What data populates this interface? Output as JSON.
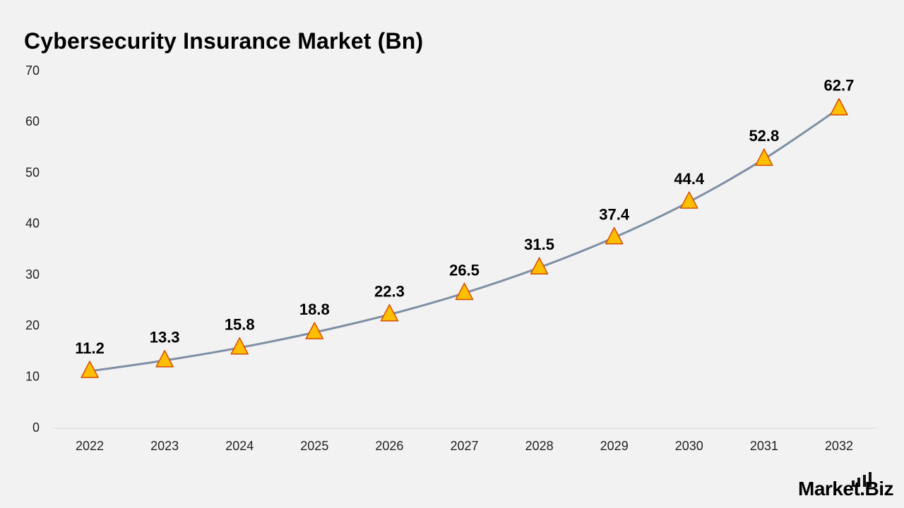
{
  "chart_data": {
    "type": "line",
    "title": "Cybersecurity Insurance Market (Bn)",
    "xlabel": "",
    "ylabel": "",
    "categories": [
      "2022",
      "2023",
      "2024",
      "2025",
      "2026",
      "2027",
      "2028",
      "2029",
      "2030",
      "2031",
      "2032"
    ],
    "series": [
      {
        "values": [
          11.2,
          13.3,
          15.8,
          18.8,
          22.3,
          26.5,
          31.5,
          37.4,
          44.4,
          52.8,
          62.7
        ],
        "data_labels": [
          "11.2",
          "13.3",
          "15.8",
          "18.8",
          "22.3",
          "26.5",
          "31.5",
          "37.4",
          "44.4",
          "52.8",
          "62.7"
        ],
        "line_color": "#7f8ea3",
        "marker": "triangle",
        "marker_fill": "#ffbf00",
        "marker_stroke": "#d64b00"
      }
    ],
    "ylim": [
      0,
      70
    ],
    "yticks": [
      "0",
      "10",
      "20",
      "30",
      "40",
      "50",
      "60",
      "70"
    ],
    "grid": false,
    "legend": "none"
  },
  "brand": {
    "name": "Market.Biz",
    "bars_icon": "signal-bars-icon"
  }
}
